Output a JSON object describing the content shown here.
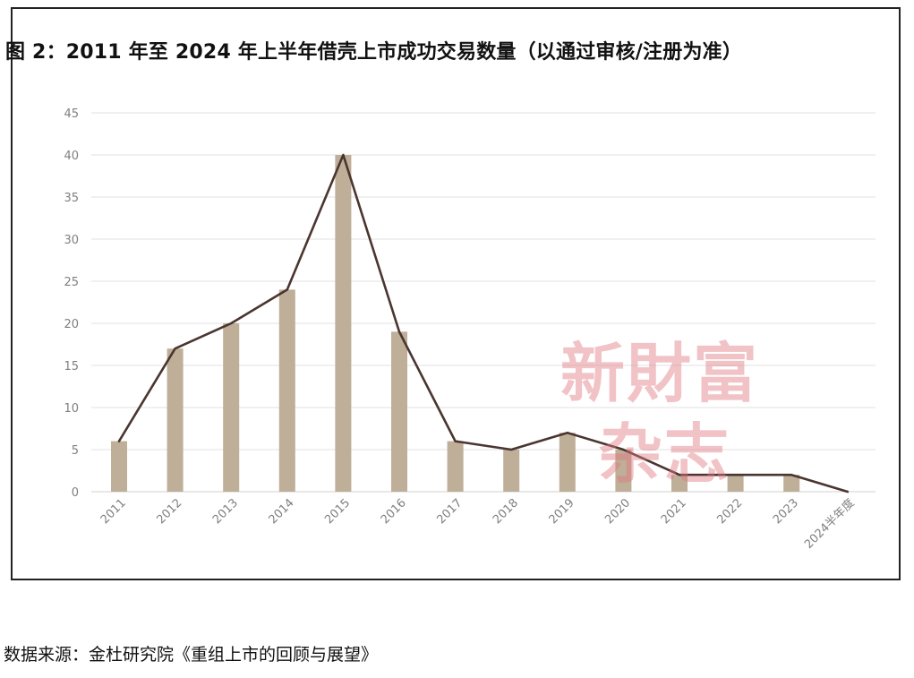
{
  "chart_data": {
    "type": "bar",
    "title": "图 2：2011 年至 2024 年上半年借壳上市成功交易数量（以通过审核/注册为准）",
    "categories": [
      "2011",
      "2012",
      "2013",
      "2014",
      "2015",
      "2016",
      "2017",
      "2018",
      "2019",
      "2020",
      "2021",
      "2022",
      "2023",
      "2024半年度"
    ],
    "series": [
      {
        "type": "bar",
        "values": [
          6,
          17,
          20,
          24,
          40,
          19,
          6,
          5,
          7,
          5,
          2,
          2,
          2,
          0
        ]
      },
      {
        "type": "line",
        "values": [
          6,
          17,
          20,
          24,
          40,
          19,
          6,
          5,
          7,
          5,
          2,
          2,
          2,
          0
        ]
      }
    ],
    "ylim": [
      0,
      45
    ],
    "yticks": [
      0,
      5,
      10,
      15,
      20,
      25,
      30,
      35,
      40,
      45
    ],
    "grid": true,
    "colors": {
      "bar": "#bfae98",
      "line": "#4a3530",
      "grid": "#e2e2e2",
      "tick_label": "#7f7f7f"
    }
  },
  "watermark": {
    "line1": "新財富",
    "line2": "杂志"
  },
  "source_note": "数据来源：金杜研究院《重组上市的回顾与展望》"
}
